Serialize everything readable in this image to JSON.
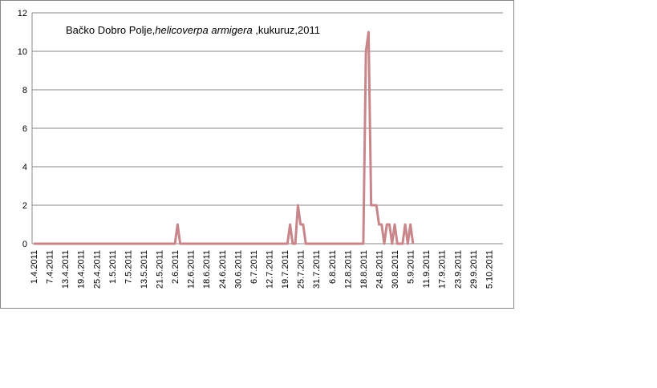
{
  "chart_data": {
    "type": "line",
    "title_parts": [
      "Bačko Dobro Polje,",
      "helicoverpa armigera",
      " ,kukuruz,2011"
    ],
    "categories": [
      "1.4.2011",
      null,
      null,
      null,
      null,
      null,
      "7.4.2011",
      null,
      null,
      null,
      null,
      null,
      "13.4.2011",
      null,
      null,
      null,
      null,
      null,
      "19.4.2011",
      null,
      null,
      null,
      null,
      null,
      "25.4.2011",
      null,
      null,
      null,
      null,
      null,
      "1.5.2011",
      null,
      null,
      null,
      null,
      null,
      "7.5.2011",
      null,
      null,
      null,
      null,
      null,
      "13.5.2011",
      null,
      null,
      null,
      null,
      null,
      "21.5.2011",
      null,
      null,
      null,
      null,
      null,
      "2.6.2011",
      null,
      null,
      null,
      null,
      null,
      "12.6.2011",
      null,
      null,
      null,
      null,
      null,
      "18.6.2011",
      null,
      null,
      null,
      null,
      null,
      "24.6.2011",
      null,
      null,
      null,
      null,
      null,
      "30.6.2011",
      null,
      null,
      null,
      null,
      null,
      "6.7.2011",
      null,
      null,
      null,
      null,
      null,
      "12.7.2011",
      null,
      null,
      null,
      null,
      null,
      "19.7.2011",
      null,
      null,
      null,
      null,
      null,
      "25.7.2011",
      null,
      null,
      null,
      null,
      null,
      "31.7.2011",
      null,
      null,
      null,
      null,
      null,
      "6.8.2011",
      null,
      null,
      null,
      null,
      null,
      "12.8.2011",
      null,
      null,
      null,
      null,
      null,
      "18.8.2011",
      null,
      null,
      null,
      null,
      null,
      "24.8.2011",
      null,
      null,
      null,
      null,
      null,
      "30.8.2011",
      null,
      null,
      null,
      null,
      null,
      "5.9.2011",
      null,
      null,
      null,
      null,
      null,
      "11.9.2011",
      null,
      null,
      null,
      null,
      null,
      "17.9.2011",
      null,
      null,
      null,
      null,
      null,
      "23.9.2011",
      null,
      null,
      null,
      null,
      null,
      "29.9.2011",
      null,
      null,
      null,
      null,
      null,
      "5.10.2011",
      null,
      null,
      null,
      null,
      null
    ],
    "values": [
      0,
      0,
      0,
      0,
      0,
      0,
      0,
      0,
      0,
      0,
      0,
      0,
      0,
      0,
      0,
      0,
      0,
      0,
      0,
      0,
      0,
      0,
      0,
      0,
      0,
      0,
      0,
      0,
      0,
      0,
      0,
      0,
      0,
      0,
      0,
      0,
      0,
      0,
      0,
      0,
      0,
      0,
      0,
      0,
      0,
      0,
      0,
      0,
      0,
      0,
      0,
      0,
      0,
      0,
      0,
      1,
      0,
      0,
      0,
      0,
      0,
      0,
      0,
      0,
      0,
      0,
      0,
      0,
      0,
      0,
      0,
      0,
      0,
      0,
      0,
      0,
      0,
      0,
      0,
      0,
      0,
      0,
      0,
      0,
      0,
      0,
      0,
      0,
      0,
      0,
      0,
      0,
      0,
      0,
      0,
      0,
      0,
      0,
      1,
      0,
      0,
      2,
      1,
      1,
      0,
      0,
      0,
      0,
      0,
      0,
      0,
      0,
      0,
      0,
      0,
      0,
      0,
      0,
      0,
      0,
      0,
      0,
      0,
      0,
      0,
      0,
      0,
      10,
      11,
      2,
      2,
      2,
      1,
      1,
      0,
      1,
      1,
      0,
      1,
      0,
      0,
      0,
      1,
      0,
      1,
      0,
      null,
      null,
      null,
      null,
      null,
      null,
      null,
      null,
      null,
      null,
      null,
      null,
      null,
      null,
      null,
      null,
      null,
      null,
      null,
      null,
      null,
      null,
      null,
      null,
      null,
      null,
      null,
      null,
      null,
      null,
      null,
      null,
      null,
      null
    ],
    "color": "#c8868a",
    "ylim": [
      0,
      12
    ],
    "yticks": [
      0,
      2,
      4,
      6,
      8,
      10,
      12
    ],
    "grid": true
  }
}
